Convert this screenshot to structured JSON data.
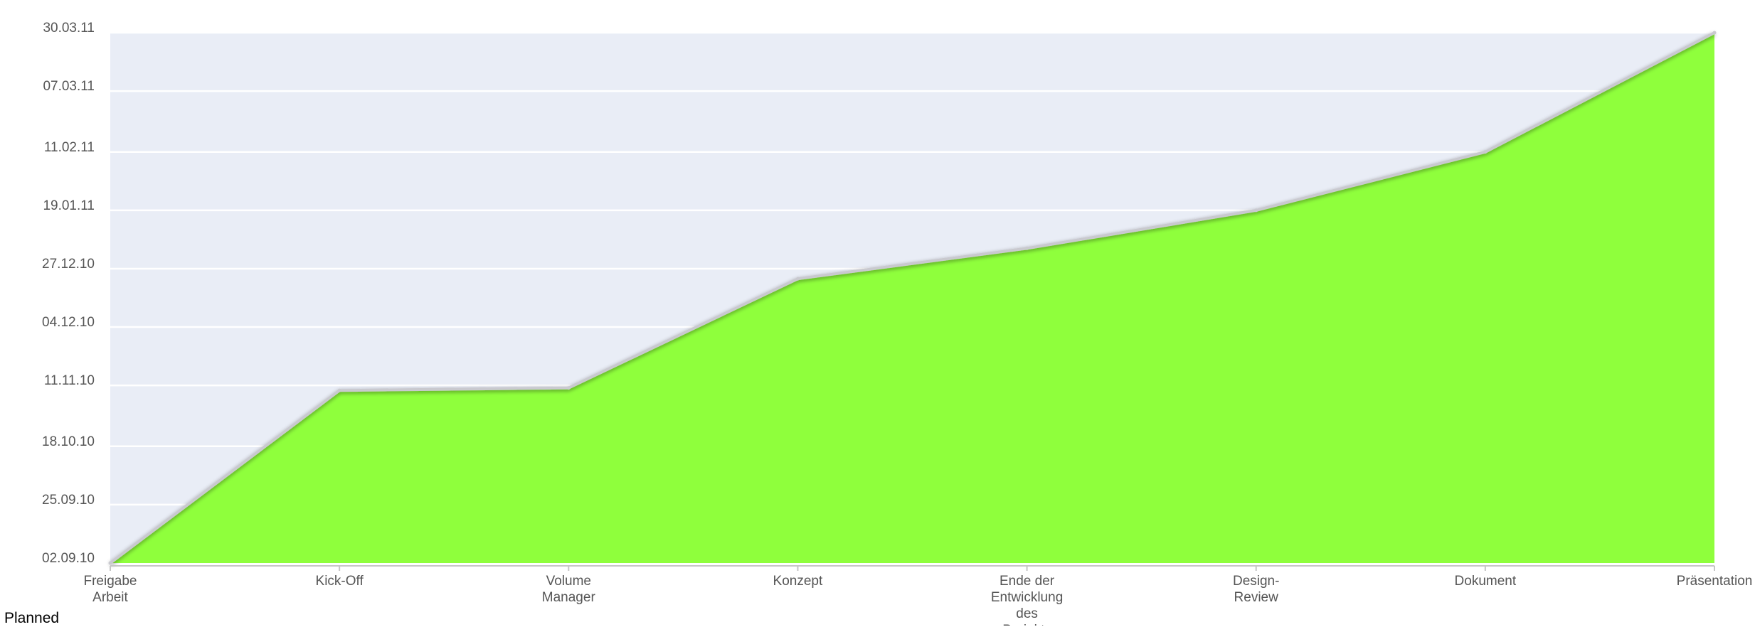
{
  "chart_data": {
    "type": "area",
    "categories": [
      "Freigabe Arbeit",
      "Kick-Off",
      "Volume Manager",
      "Konzept",
      "Ende der Entwicklung des Projekts",
      "Design-Review",
      "Dokument",
      "Präsentation"
    ],
    "category_label_lines": [
      [
        "Freigabe",
        "Arbeit"
      ],
      [
        "Kick-Off"
      ],
      [
        "Volume",
        "Manager"
      ],
      [
        "Konzept"
      ],
      [
        "Ende der",
        "Entwicklung",
        "des",
        "Projekts"
      ],
      [
        "Design-",
        "Review"
      ],
      [
        "Dokument"
      ],
      [
        "Präsentation"
      ]
    ],
    "values": [
      "02.09.10",
      "09.11.10",
      "10.11.10",
      "23.12.10",
      "04.01.11",
      "19.01.11",
      "11.02.11",
      "30.03.11"
    ],
    "y_tick_labels": [
      "02.09.10",
      "25.09.10",
      "18.10.10",
      "11.11.10",
      "04.12.10",
      "27.12.10",
      "19.01.11",
      "11.02.11",
      "07.03.11",
      "30.03.11"
    ],
    "ylim": [
      "02.09.10",
      "30.03.11"
    ],
    "grid": true,
    "colors": {
      "area": "#8fff3c",
      "line": "#c9c9cf",
      "plot_background": "#e9edf6",
      "gridline": "#ffffff",
      "tick_text": "#555555"
    }
  },
  "caption": "Planned"
}
